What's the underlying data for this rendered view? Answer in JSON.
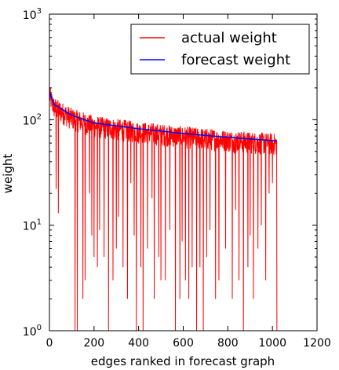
{
  "chart_data": {
    "type": "line",
    "title": "",
    "xlabel": "edges ranked in forecast graph",
    "ylabel": "weight",
    "xlim": [
      0,
      1200
    ],
    "ylim": [
      1,
      1000
    ],
    "yscale": "log",
    "xticks": [
      "0",
      "200",
      "400",
      "600",
      "800",
      "1000",
      "1200"
    ],
    "yticks": [
      {
        "base": "10",
        "exp": "0"
      },
      {
        "base": "10",
        "exp": "1"
      },
      {
        "base": "10",
        "exp": "2"
      },
      {
        "base": "10",
        "exp": "3"
      }
    ],
    "legend_position": "top-right",
    "grid": false,
    "series": [
      {
        "name": "actual weight",
        "color": "#ff0000",
        "x_range": [
          1,
          1020
        ],
        "trend": [
          [
            1,
            180
          ],
          [
            20,
            140
          ],
          [
            100,
            110
          ],
          [
            200,
            93
          ],
          [
            400,
            82
          ],
          [
            600,
            74
          ],
          [
            800,
            68
          ],
          [
            1020,
            63
          ]
        ],
        "dips": [
          [
            30,
            22
          ],
          [
            40,
            13
          ],
          [
            115,
            1
          ],
          [
            125,
            1
          ],
          [
            150,
            2
          ],
          [
            160,
            3
          ],
          [
            180,
            20
          ],
          [
            190,
            8
          ],
          [
            200,
            5
          ],
          [
            215,
            4
          ],
          [
            225,
            9
          ],
          [
            245,
            5
          ],
          [
            265,
            1
          ],
          [
            285,
            3
          ],
          [
            300,
            6
          ],
          [
            310,
            12
          ],
          [
            330,
            4
          ],
          [
            350,
            2
          ],
          [
            365,
            25
          ],
          [
            380,
            8
          ],
          [
            390,
            1
          ],
          [
            410,
            4
          ],
          [
            420,
            1
          ],
          [
            440,
            6
          ],
          [
            460,
            18
          ],
          [
            470,
            2
          ],
          [
            490,
            5
          ],
          [
            500,
            3
          ],
          [
            520,
            3
          ],
          [
            540,
            9
          ],
          [
            565,
            1
          ],
          [
            585,
            2
          ],
          [
            595,
            7
          ],
          [
            610,
            3
          ],
          [
            625,
            2
          ],
          [
            640,
            4
          ],
          [
            660,
            1
          ],
          [
            675,
            4
          ],
          [
            690,
            1
          ],
          [
            705,
            5
          ],
          [
            720,
            9
          ],
          [
            745,
            2
          ],
          [
            760,
            3
          ],
          [
            790,
            6
          ],
          [
            820,
            2
          ],
          [
            835,
            14
          ],
          [
            850,
            3
          ],
          [
            870,
            1
          ],
          [
            890,
            4
          ],
          [
            900,
            8
          ],
          [
            915,
            2
          ],
          [
            935,
            6
          ],
          [
            950,
            10
          ],
          [
            970,
            3
          ],
          [
            985,
            20
          ],
          [
            1000,
            25
          ],
          [
            1020,
            1
          ]
        ]
      },
      {
        "name": "forecast weight",
        "color": "#0000ff",
        "x_range": [
          1,
          1020
        ],
        "trend": [
          [
            1,
            180
          ],
          [
            20,
            140
          ],
          [
            100,
            110
          ],
          [
            200,
            93
          ],
          [
            400,
            82
          ],
          [
            600,
            74
          ],
          [
            800,
            68
          ],
          [
            1020,
            63
          ]
        ]
      }
    ]
  }
}
